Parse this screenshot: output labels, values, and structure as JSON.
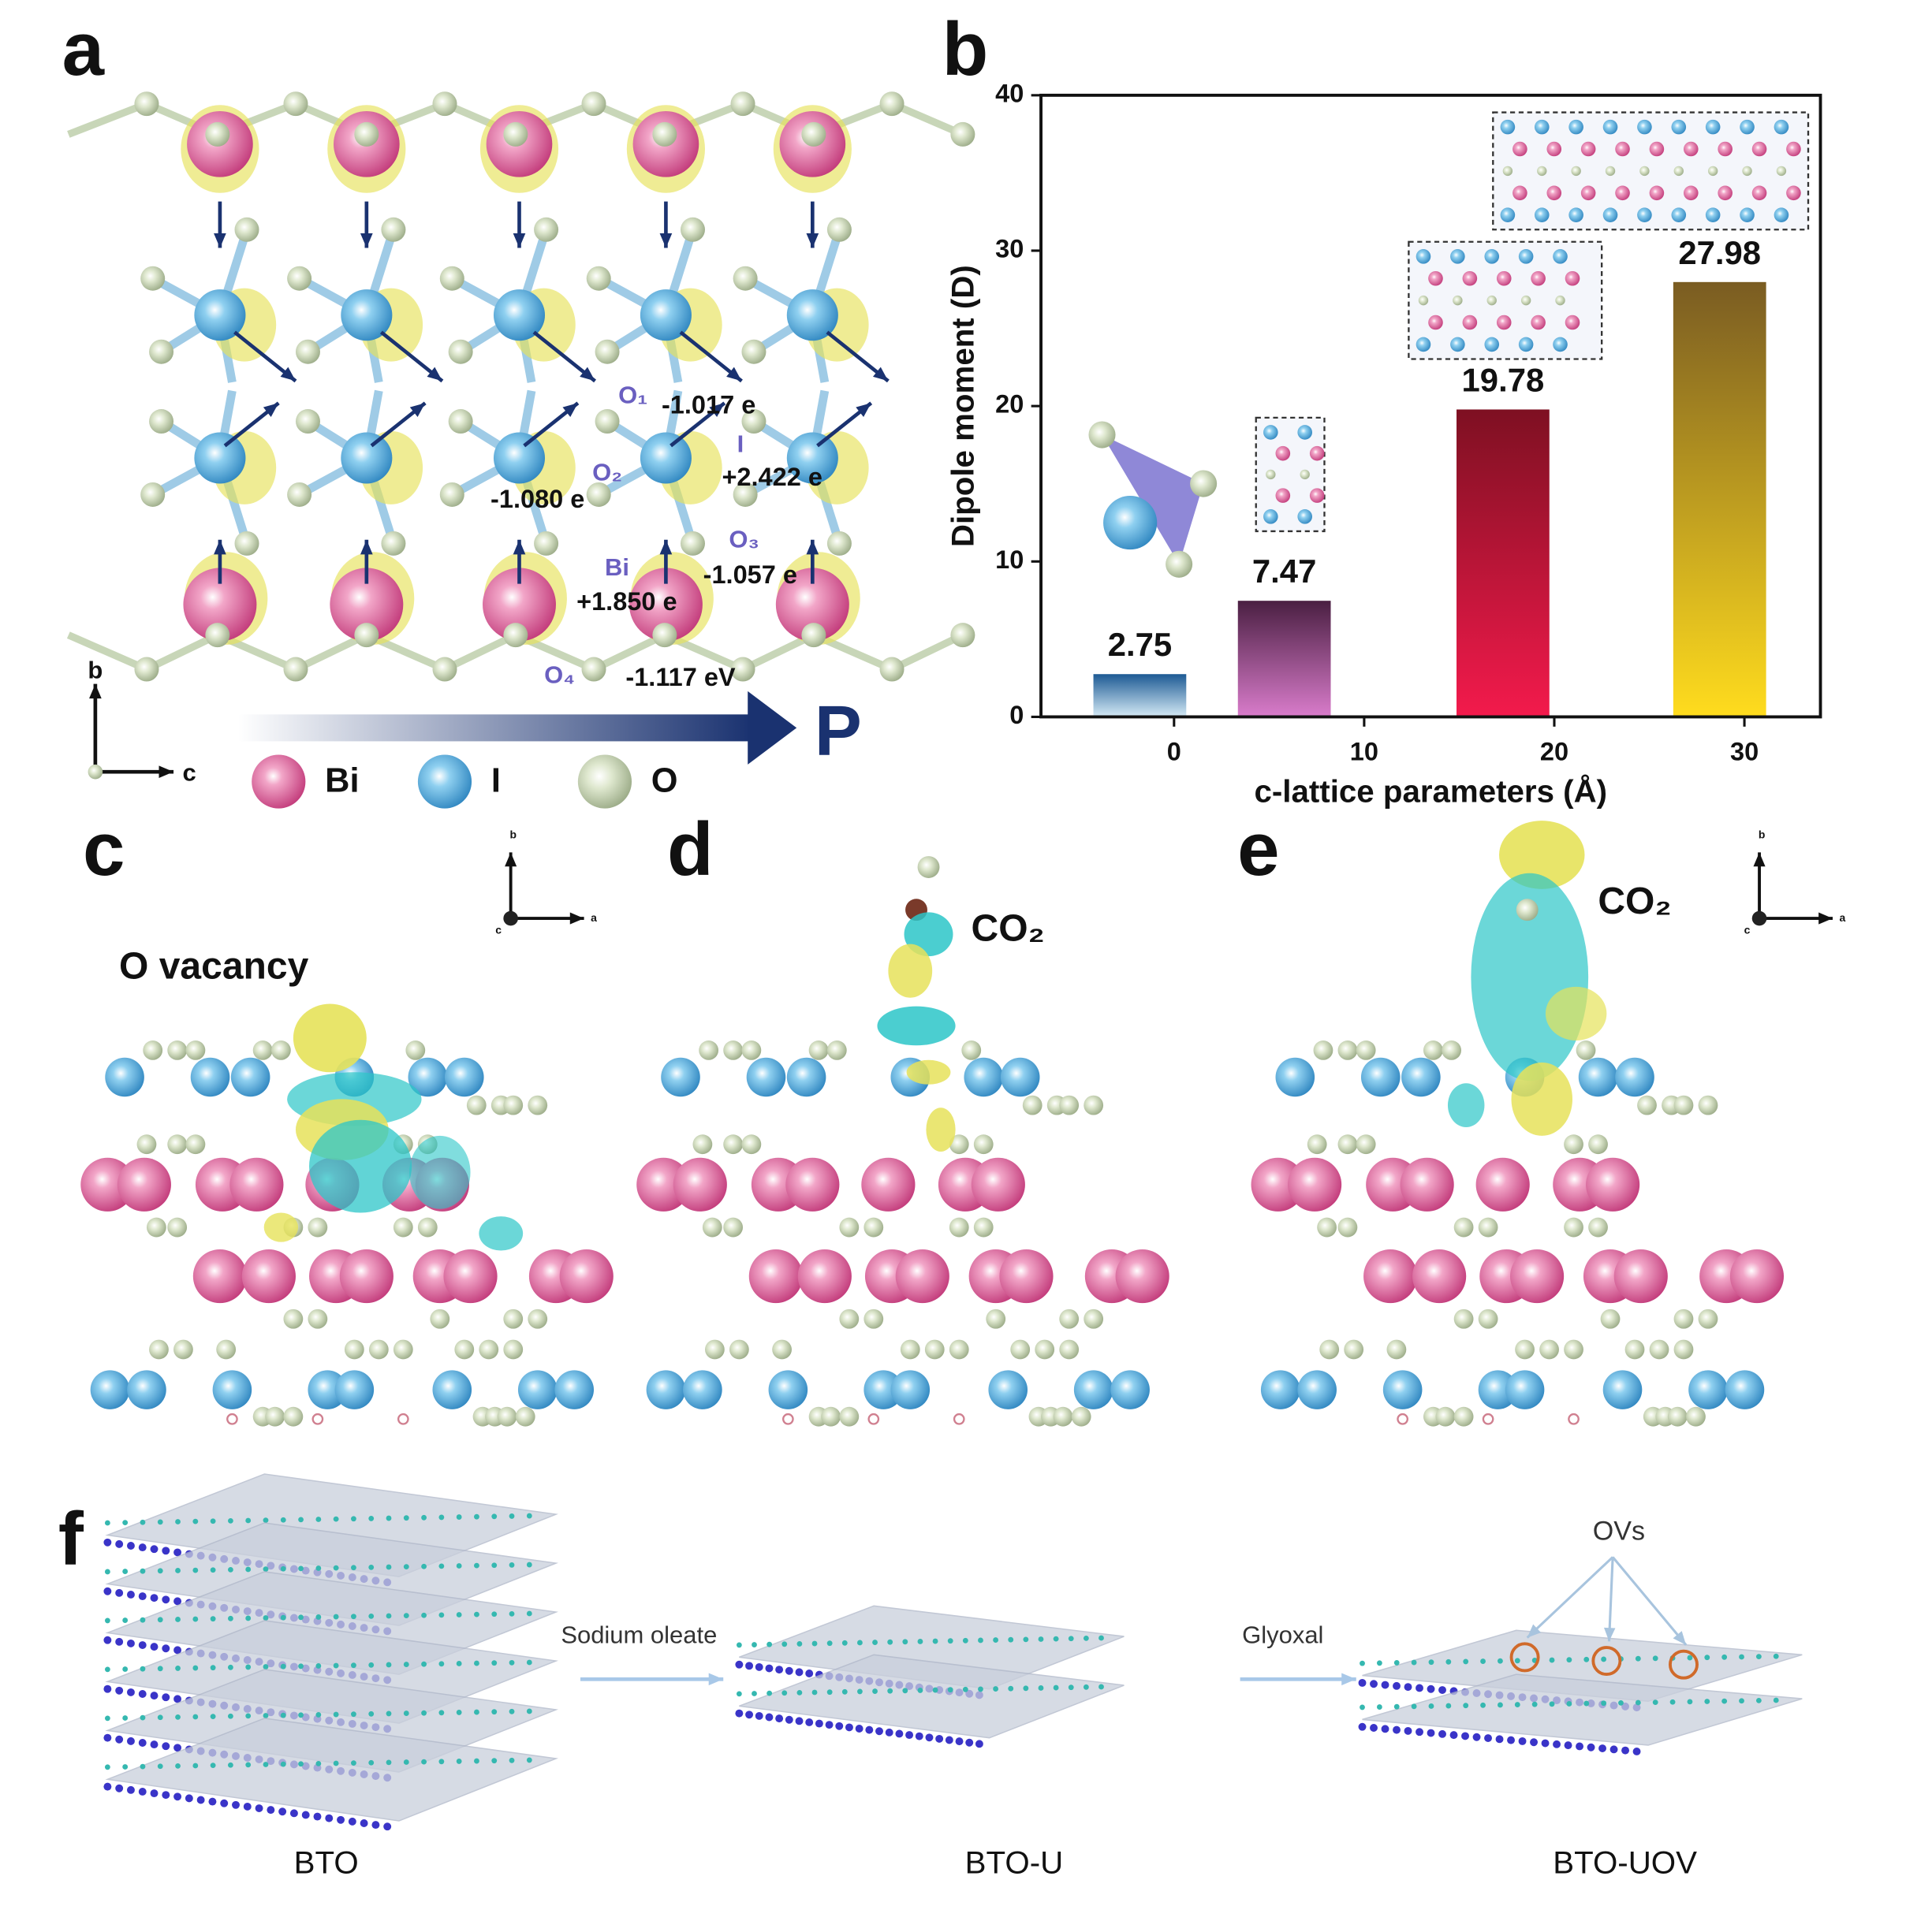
{
  "chart_data": {
    "type": "bar",
    "panel_label": "b",
    "x": [
      -1.8,
      5.8,
      17.3,
      28.7
    ],
    "values": [
      2.75,
      7.47,
      19.78,
      27.98
    ],
    "colors": [
      [
        "#1d5a94",
        "#d6ebf6"
      ],
      [
        "#4a1f42",
        "#d97ccb"
      ],
      [
        "#7e1022",
        "#f31a4c"
      ],
      [
        "#7a5c22",
        "#ffdc1e"
      ]
    ],
    "xlim": [
      -7,
      34
    ],
    "xticks": [
      0,
      10,
      20,
      30
    ],
    "ylim": [
      0,
      40
    ],
    "yticks": [
      0,
      10,
      20,
      30,
      40
    ],
    "xlabel": "c-lattice parameters (Å)",
    "ylabel": "Dipole moment (D)"
  },
  "panel_a": {
    "label": "a",
    "annotations": [
      "O₁",
      "-1.017 e",
      "I",
      "+2.422 e",
      "O₂",
      "-1.080 e",
      "O₃",
      "-1.057 e",
      "Bi",
      "+1.850 e",
      "O₄",
      "-1.117 eV",
      "P"
    ],
    "legend": [
      "Bi",
      "I",
      "O"
    ],
    "axes": [
      "b",
      "c"
    ]
  },
  "panel_c": {
    "label": "c",
    "text": "O vacancy",
    "axes": [
      "b",
      "a",
      "c"
    ]
  },
  "panel_d": {
    "label": "d",
    "text": "CO₂"
  },
  "panel_e": {
    "label": "e",
    "text": "CO₂",
    "axes": [
      "b",
      "a",
      "c"
    ]
  },
  "panel_f": {
    "label": "f",
    "defects": "OVs",
    "steps": [
      "Sodium oleate",
      "Glyoxal"
    ],
    "samples": [
      "BTO",
      "BTO-U",
      "BTO-UOV"
    ]
  }
}
